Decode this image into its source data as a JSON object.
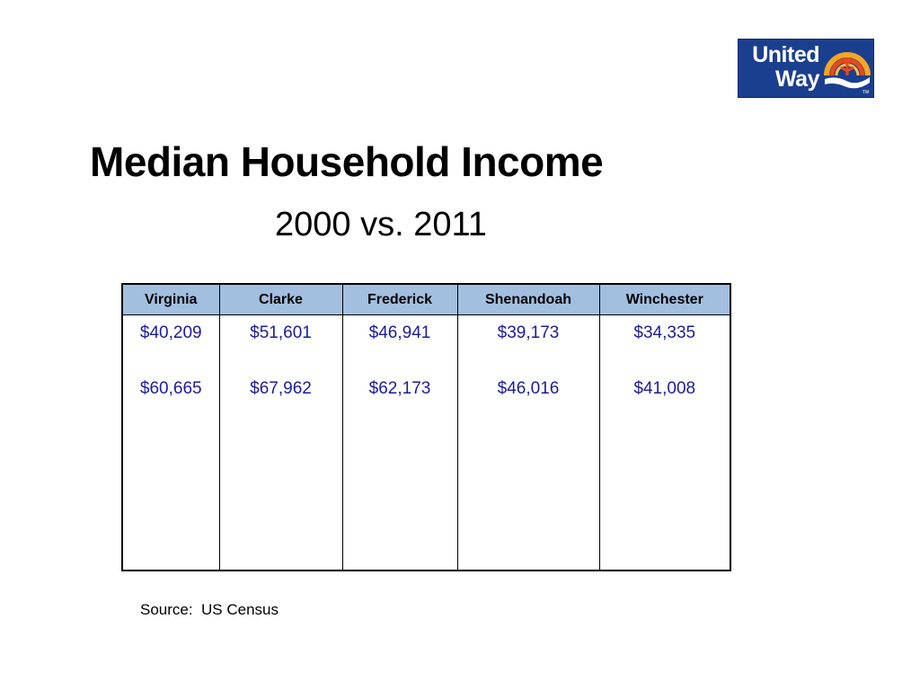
{
  "logo": {
    "line1": "United",
    "line2": "Way",
    "colors": {
      "background": "#1b3f8f",
      "rainbow": [
        "#f5a623",
        "#e8491d",
        "#ffffff"
      ],
      "hand": "#ffffff"
    }
  },
  "slide": {
    "title": "Median Household Income",
    "subtitle": "2000 vs. 2011",
    "source": "Source:  US Census"
  },
  "table": {
    "header_color": "#a3bfe0",
    "value_color": "#1c1c9e",
    "columns": [
      {
        "name": "Virginia",
        "v2000": "$40,209",
        "v2011": "$60,665"
      },
      {
        "name": "Clarke",
        "v2000": "$51,601",
        "v2011": "$67,962"
      },
      {
        "name": "Frederick",
        "v2000": "$46,941",
        "v2011": "$62,173"
      },
      {
        "name": "Shenandoah",
        "v2000": "$39,173",
        "v2011": "$46,016"
      },
      {
        "name": "Winchester",
        "v2000": "$34,335",
        "v2011": "$41,008"
      }
    ]
  }
}
